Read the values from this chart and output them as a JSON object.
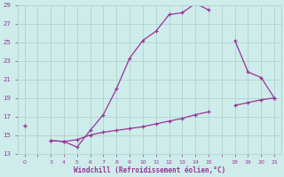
{
  "xlabel": "Windchill (Refroidissement éolien,°C)",
  "bg_color": "#ceecea",
  "grid_color": "#aed4d0",
  "line_color": "#993399",
  "ylim": [
    13,
    29
  ],
  "xtick_labels": [
    "0",
    "",
    "3",
    "4",
    "5",
    "6",
    "7",
    "8",
    "9",
    "10",
    "11",
    "12",
    "13",
    "14",
    "15",
    "",
    "18",
    "19",
    "20",
    "21"
  ],
  "upper_y": [
    16.0,
    null,
    14.4,
    14.3,
    13.7,
    15.5,
    17.2,
    20.0,
    23.3,
    25.2,
    26.2,
    28.0,
    28.2,
    29.2,
    28.5,
    null,
    25.2,
    21.8,
    21.2,
    19.0
  ],
  "lower_y": [
    16.0,
    null,
    14.4,
    14.3,
    14.5,
    15.0,
    15.3,
    15.5,
    15.7,
    15.9,
    16.2,
    16.5,
    16.8,
    17.2,
    17.5,
    null,
    18.2,
    18.5,
    18.8,
    19.0
  ],
  "upper_has_marker": [
    true,
    false,
    true,
    true,
    true,
    true,
    true,
    true,
    true,
    true,
    true,
    true,
    true,
    true,
    true,
    false,
    true,
    true,
    true,
    true
  ],
  "lower_has_marker": [
    true,
    false,
    true,
    true,
    true,
    true,
    true,
    true,
    true,
    true,
    true,
    true,
    true,
    true,
    true,
    false,
    true,
    true,
    true,
    true
  ],
  "yticks": [
    13,
    15,
    17,
    19,
    21,
    23,
    25,
    27,
    29
  ]
}
